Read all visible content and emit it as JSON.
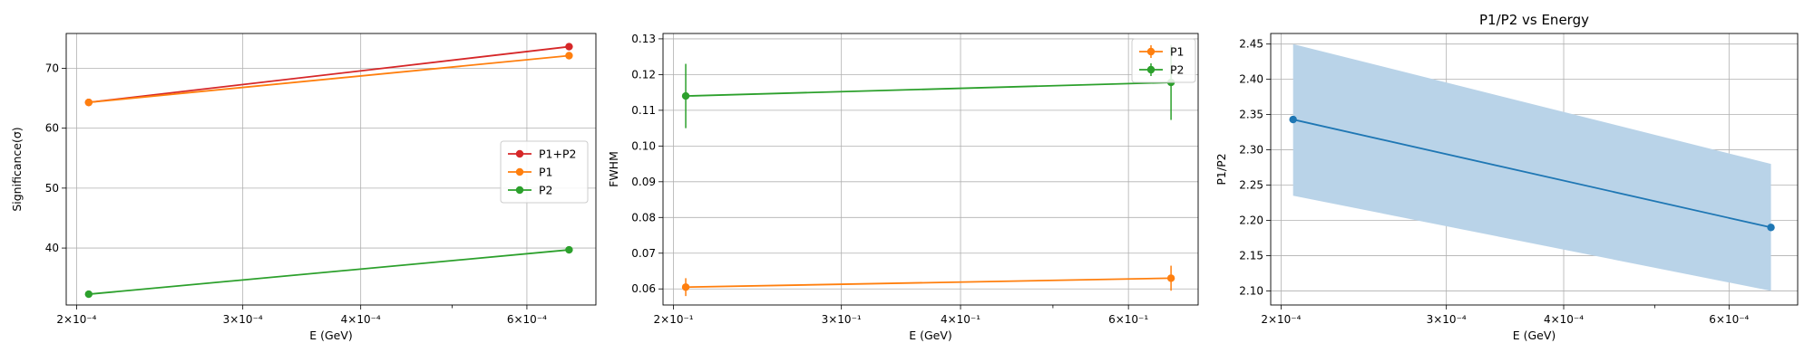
{
  "chart_data": [
    {
      "type": "line",
      "title": "",
      "xlabel": "E (GeV)",
      "ylabel": "Significance(σ)",
      "xscale": "log",
      "xlim": [
        0.000195,
        0.00071
      ],
      "ylim": [
        30.5,
        75.8
      ],
      "grid": true,
      "legend_position": "center-right",
      "x_ticks": [
        {
          "value": 0.0002,
          "label": "2×10⁻⁴"
        },
        {
          "value": 0.0003,
          "label": "3×10⁻⁴"
        },
        {
          "value": 0.0004,
          "label": "4×10⁻⁴"
        },
        {
          "value": 0.0006,
          "label": "6×10⁻⁴"
        }
      ],
      "y_ticks": [
        {
          "value": 40,
          "label": "40"
        },
        {
          "value": 50,
          "label": "50"
        },
        {
          "value": 60,
          "label": "60"
        },
        {
          "value": 70,
          "label": "70"
        }
      ],
      "x": [
        0.000206,
        0.000665
      ],
      "series": [
        {
          "name": "P1+P2",
          "color": "#d62728",
          "values": [
            64.3,
            73.6
          ]
        },
        {
          "name": "P1",
          "color": "#ff7f0e",
          "values": [
            64.3,
            72.1
          ]
        },
        {
          "name": "P2",
          "color": "#2ca02c",
          "values": [
            32.3,
            39.7
          ]
        }
      ]
    },
    {
      "type": "line",
      "title": "",
      "xlabel": "E (GeV)",
      "ylabel": "FWHM",
      "xscale": "log",
      "xlim": [
        0.195,
        0.71
      ],
      "ylim": [
        0.0555,
        0.1315
      ],
      "grid": true,
      "legend_position": "top-right",
      "x_ticks": [
        {
          "value": 0.2,
          "label": "2×10⁻¹"
        },
        {
          "value": 0.3,
          "label": "3×10⁻¹"
        },
        {
          "value": 0.4,
          "label": "4×10⁻¹"
        },
        {
          "value": 0.6,
          "label": "6×10⁻¹"
        }
      ],
      "y_ticks": [
        {
          "value": 0.06,
          "label": "0.06"
        },
        {
          "value": 0.07,
          "label": "0.07"
        },
        {
          "value": 0.08,
          "label": "0.08"
        },
        {
          "value": 0.09,
          "label": "0.09"
        },
        {
          "value": 0.1,
          "label": "0.10"
        },
        {
          "value": 0.11,
          "label": "0.11"
        },
        {
          "value": 0.12,
          "label": "0.12"
        },
        {
          "value": 0.13,
          "label": "0.13"
        }
      ],
      "x": [
        0.206,
        0.665
      ],
      "series": [
        {
          "name": "P1",
          "color": "#ff7f0e",
          "values": [
            0.0605,
            0.063
          ],
          "errors": [
            0.0025,
            0.0035
          ]
        },
        {
          "name": "P2",
          "color": "#2ca02c",
          "values": [
            0.114,
            0.1178
          ],
          "errors": [
            0.009,
            0.0105
          ]
        }
      ]
    },
    {
      "type": "area",
      "title": "P1/P2 vs Energy",
      "xlabel": "E (GeV)",
      "ylabel": "P1/P2",
      "xscale": "log",
      "xlim": [
        0.000195,
        0.00071
      ],
      "ylim": [
        2.08,
        2.465
      ],
      "grid": true,
      "legend_position": "none",
      "x_ticks": [
        {
          "value": 0.0002,
          "label": "2×10⁻⁴"
        },
        {
          "value": 0.0003,
          "label": "3×10⁻⁴"
        },
        {
          "value": 0.0004,
          "label": "4×10⁻⁴"
        },
        {
          "value": 0.0006,
          "label": "6×10⁻⁴"
        }
      ],
      "y_ticks": [
        {
          "value": 2.1,
          "label": "2.10"
        },
        {
          "value": 2.15,
          "label": "2.15"
        },
        {
          "value": 2.2,
          "label": "2.20"
        },
        {
          "value": 2.25,
          "label": "2.25"
        },
        {
          "value": 2.3,
          "label": "2.30"
        },
        {
          "value": 2.35,
          "label": "2.35"
        },
        {
          "value": 2.4,
          "label": "2.40"
        },
        {
          "value": 2.45,
          "label": "2.45"
        }
      ],
      "x": [
        0.000206,
        0.000665
      ],
      "series": [
        {
          "color": "#1f77b4",
          "values": [
            2.343,
            2.19
          ],
          "lower": [
            2.235,
            2.1
          ],
          "upper": [
            2.45,
            2.28
          ],
          "band_color": "#b9d3e8"
        }
      ]
    }
  ]
}
